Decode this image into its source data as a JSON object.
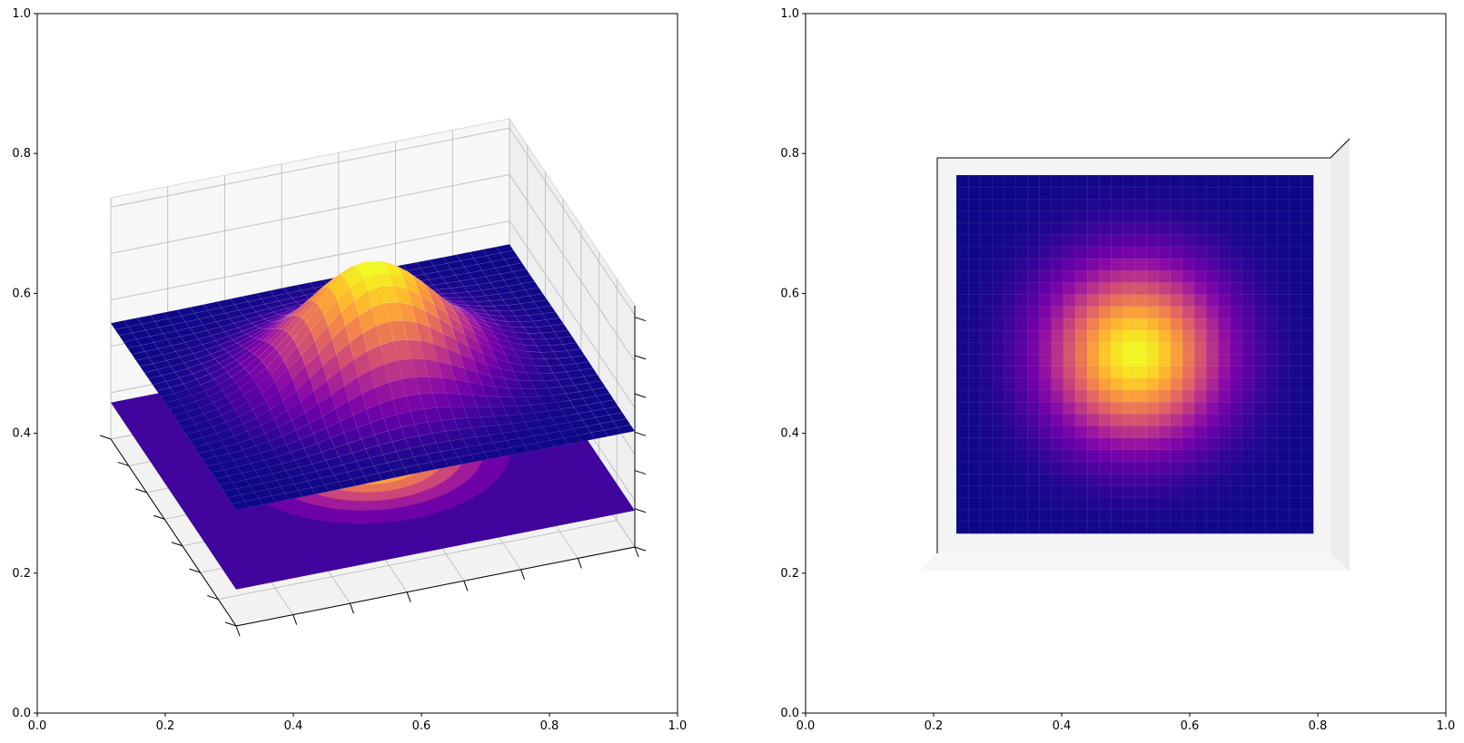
{
  "chart_data": [
    {
      "type": "surface3d",
      "title": "",
      "xlabel": "",
      "ylabel": "",
      "frame_x_ticks": [
        "0.0",
        "0.2",
        "0.4",
        "0.6",
        "0.8",
        "1.0"
      ],
      "frame_y_ticks": [
        "0.0",
        "0.2",
        "0.4",
        "0.6",
        "0.8",
        "1.0"
      ],
      "function": "gaussian bump z = exp(-(x^2 + y^2) / 2)",
      "domain_x": [
        -3,
        3
      ],
      "domain_y": [
        -3,
        3
      ],
      "grid_size": 30,
      "z_range": [
        0,
        1
      ],
      "colormap": "plasma",
      "contour_projection": "filled contours on floor below surface",
      "contour_levels": [
        0.0,
        0.14,
        0.28,
        0.42,
        0.57,
        0.71,
        0.85,
        1.0
      ],
      "view": "elevated oblique",
      "grid": true,
      "pane_color": "#f2f2f2"
    },
    {
      "type": "surface3d",
      "title": "",
      "xlabel": "",
      "ylabel": "",
      "frame_x_ticks": [
        "0.0",
        "0.2",
        "0.4",
        "0.6",
        "0.8",
        "1.0"
      ],
      "frame_y_ticks": [
        "0.0",
        "0.2",
        "0.4",
        "0.6",
        "0.8",
        "1.0"
      ],
      "function": "gaussian bump z = exp(-(x^2 + y^2) / 2)",
      "domain_x": [
        -3,
        3
      ],
      "domain_y": [
        -3,
        3
      ],
      "grid_size": 30,
      "z_range": [
        0,
        1
      ],
      "colormap": "plasma",
      "view": "top-down",
      "grid": false,
      "pane_color": "#f2f2f2"
    }
  ]
}
